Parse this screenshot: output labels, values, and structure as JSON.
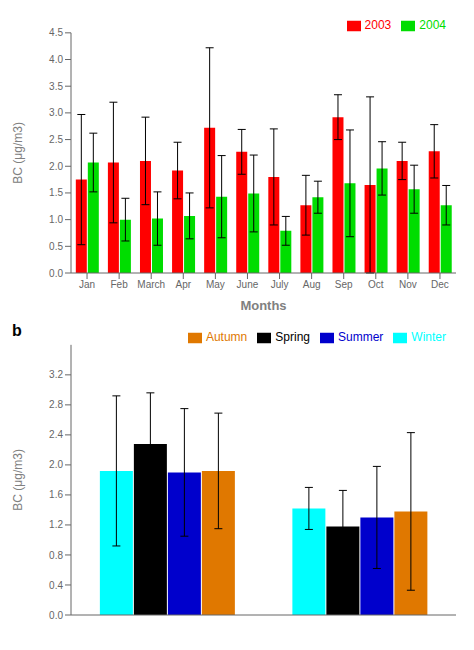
{
  "chart_data": [
    {
      "type": "bar",
      "xlabel": "Months",
      "ylabel": "BC (μg/m3)",
      "categories": [
        "Jan",
        "Feb",
        "March",
        "Apr",
        "May",
        "June",
        "July",
        "Aug",
        "Sep",
        "Oct",
        "Nov",
        "Dec"
      ],
      "series": [
        {
          "name": "2003",
          "color": "#ff0000",
          "values": [
            1.75,
            2.07,
            2.1,
            1.92,
            2.72,
            2.27,
            1.8,
            1.27,
            2.92,
            1.65,
            2.1,
            2.28
          ],
          "errors": [
            1.22,
            1.13,
            0.82,
            0.53,
            1.5,
            0.42,
            0.9,
            0.56,
            0.42,
            1.65,
            0.35,
            0.5
          ]
        },
        {
          "name": "2004",
          "color": "#00dd00",
          "values": [
            2.07,
            1.0,
            1.02,
            1.07,
            1.43,
            1.49,
            0.79,
            1.42,
            1.68,
            1.96,
            1.57,
            1.27
          ],
          "errors": [
            0.55,
            0.4,
            0.5,
            0.43,
            0.77,
            0.72,
            0.27,
            0.3,
            1.0,
            0.5,
            0.45,
            0.37
          ]
        }
      ],
      "ylim": [
        0.0,
        4.5
      ],
      "yticks": [
        {
          "value": 0,
          "label": "0.0"
        },
        0.5,
        {
          "value": 1,
          "label": "1.0"
        },
        1.5,
        {
          "value": 2,
          "label": "2.0"
        },
        2.5,
        {
          "value": 3,
          "label": "3.0"
        },
        3.5,
        {
          "value": 4,
          "label": "4.0"
        },
        4.5
      ],
      "grid": false,
      "legend": "upper right"
    },
    {
      "type": "bar",
      "ylabel": "BC (μg/m3)",
      "annotations": [
        "b"
      ],
      "categories": [
        null,
        null
      ],
      "series": [
        {
          "name": "Winter",
          "color": "#00ffff",
          "values": [
            1.92,
            1.42
          ],
          "errors": [
            1.0,
            0.28
          ]
        },
        {
          "name": "Spring",
          "color": "#000000",
          "values": [
            2.28,
            1.18
          ],
          "errors": [
            0.68,
            0.48
          ]
        },
        {
          "name": "Summer",
          "color": "#0000cc",
          "values": [
            1.9,
            1.3
          ],
          "errors": [
            0.85,
            0.68
          ]
        },
        {
          "name": "Autumn",
          "color": "#e07800",
          "values": [
            1.92,
            1.38
          ],
          "errors": [
            0.77,
            1.05
          ]
        }
      ],
      "ylim": [
        0.0,
        3.6
      ],
      "yticks": [
        {
          "value": 0,
          "label": "0.0"
        },
        0.4,
        0.8,
        1.2,
        1.6,
        {
          "value": 2,
          "label": "2.0"
        },
        2.4,
        2.8,
        3.2
      ],
      "grid": false,
      "legend": "upper right",
      "tick_labels": "y"
    }
  ]
}
